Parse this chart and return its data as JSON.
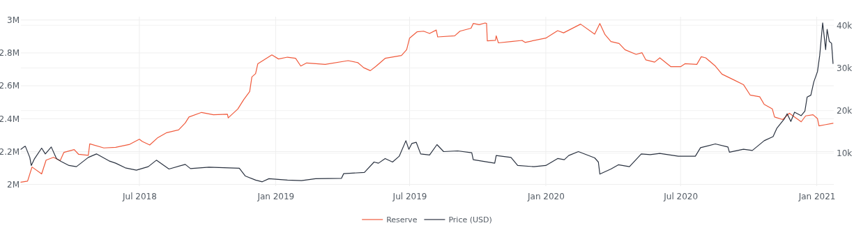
{
  "chart_data": {
    "type": "line",
    "xlim": [
      "2018-01-22",
      "2021-01-24"
    ],
    "xticks": [
      {
        "value": "2018-07-01",
        "label": "Jul 2018"
      },
      {
        "value": "2019-01-01",
        "label": "Jan 2019"
      },
      {
        "value": "2019-07-01",
        "label": "Jul 2019"
      },
      {
        "value": "2020-01-01",
        "label": "Jan 2020"
      },
      {
        "value": "2020-07-01",
        "label": "Jul 2020"
      },
      {
        "value": "2021-01-01",
        "label": "Jan 2021"
      }
    ],
    "ylim": [
      1990000,
      3020000
    ],
    "yticks": [
      {
        "value": 2000000,
        "label": "2M"
      },
      {
        "value": 2200000,
        "label": "2.2M"
      },
      {
        "value": 2400000,
        "label": "2.4M"
      },
      {
        "value": 2600000,
        "label": "2.6M"
      },
      {
        "value": 2800000,
        "label": "2.8M"
      },
      {
        "value": 3000000,
        "label": "3M"
      }
    ],
    "y2lim": [
      2300,
      42000
    ],
    "y2ticks": [
      {
        "value": 10000,
        "label": "10k"
      },
      {
        "value": 20000,
        "label": "20k"
      },
      {
        "value": 30000,
        "label": "30k"
      },
      {
        "value": 40000,
        "label": "40k"
      }
    ],
    "grid": true,
    "legend": "bottom",
    "line_style": "solid",
    "marker": "none",
    "series": [
      {
        "name": "Reserve",
        "color": "#f05a3c",
        "x": [
          "2018-01-22",
          "2018-01-31",
          "2018-02-06",
          "2018-02-19",
          "2018-02-25",
          "2018-03-07",
          "2018-03-16",
          "2018-03-21",
          "2018-04-04",
          "2018-04-10",
          "2018-04-23",
          "2018-04-25",
          "2018-05-14",
          "2018-05-30",
          "2018-06-18",
          "2018-07-01",
          "2018-07-05",
          "2018-07-15",
          "2018-07-26",
          "2018-08-07",
          "2018-08-23",
          "2018-09-01",
          "2018-09-06",
          "2018-09-23",
          "2018-10-09",
          "2018-10-28",
          "2018-10-29",
          "2018-11-11",
          "2018-11-19",
          "2018-11-27",
          "2018-11-30",
          "2018-12-05",
          "2018-12-08",
          "2018-12-27",
          "2019-01-05",
          "2019-01-17",
          "2019-01-28",
          "2019-02-04",
          "2019-02-12",
          "2019-03-09",
          "2019-04-09",
          "2019-04-22",
          "2019-04-30",
          "2019-05-09",
          "2019-05-17",
          "2019-05-29",
          "2019-06-20",
          "2019-06-27",
          "2019-07-01",
          "2019-07-11",
          "2019-07-20",
          "2019-07-28",
          "2019-08-06",
          "2019-08-08",
          "2019-08-31",
          "2019-09-07",
          "2019-09-22",
          "2019-09-25",
          "2019-10-03",
          "2019-10-11",
          "2019-10-13",
          "2019-10-14",
          "2019-10-25",
          "2019-10-26",
          "2019-10-29",
          "2019-11-15",
          "2019-11-30",
          "2019-12-04",
          "2020-01-01",
          "2020-01-17",
          "2020-01-25",
          "2020-02-17",
          "2020-03-07",
          "2020-03-14",
          "2020-03-21",
          "2020-03-29",
          "2020-04-09",
          "2020-04-17",
          "2020-05-02",
          "2020-05-10",
          "2020-05-15",
          "2020-05-27",
          "2020-06-03",
          "2020-06-18",
          "2020-07-01",
          "2020-07-07",
          "2020-07-23",
          "2020-07-29",
          "2020-08-04",
          "2020-08-17",
          "2020-08-26",
          "2020-09-11",
          "2020-09-24",
          "2020-10-03",
          "2020-10-16",
          "2020-10-22",
          "2020-11-02",
          "2020-11-05",
          "2020-11-16",
          "2020-11-25",
          "2020-12-11",
          "2020-12-17",
          "2020-12-27",
          "2021-01-02",
          "2021-01-04",
          "2021-01-12",
          "2021-01-23"
        ],
        "values": [
          2014000,
          2020000,
          2106000,
          2064000,
          2148000,
          2165000,
          2145000,
          2195000,
          2212000,
          2183000,
          2177000,
          2247000,
          2222000,
          2226000,
          2244000,
          2275000,
          2261000,
          2240000,
          2285000,
          2315000,
          2332000,
          2374000,
          2410000,
          2438000,
          2424000,
          2427000,
          2405000,
          2459000,
          2516000,
          2565000,
          2654000,
          2674000,
          2734000,
          2788000,
          2763000,
          2774000,
          2767000,
          2720000,
          2739000,
          2730000,
          2753000,
          2741000,
          2710000,
          2692000,
          2720000,
          2767000,
          2784000,
          2819000,
          2890000,
          2928000,
          2932000,
          2918000,
          2939000,
          2897000,
          2904000,
          2932000,
          2950000,
          2979000,
          2972000,
          2982000,
          2979000,
          2873000,
          2876000,
          2904000,
          2861000,
          2869000,
          2876000,
          2864000,
          2890000,
          2935000,
          2922000,
          2975000,
          2914000,
          2979000,
          2911000,
          2869000,
          2857000,
          2819000,
          2791000,
          2801000,
          2758000,
          2744000,
          2770000,
          2716000,
          2716000,
          2734000,
          2730000,
          2777000,
          2770000,
          2720000,
          2671000,
          2636000,
          2607000,
          2544000,
          2533000,
          2487000,
          2459000,
          2410000,
          2395000,
          2433000,
          2381000,
          2417000,
          2424000,
          2400000,
          2356000,
          2363000,
          2372000
        ]
      },
      {
        "name": "Price (USD)",
        "color": "#2a3240",
        "axis": "y2",
        "x": [
          "2018-01-22",
          "2018-01-26",
          "2018-01-28",
          "2018-02-03",
          "2018-02-05",
          "2018-02-09",
          "2018-02-19",
          "2018-02-24",
          "2018-03-04",
          "2018-03-11",
          "2018-03-17",
          "2018-03-28",
          "2018-04-07",
          "2018-04-23",
          "2018-05-04",
          "2018-05-21",
          "2018-05-30",
          "2018-06-12",
          "2018-06-27",
          "2018-07-13",
          "2018-07-24",
          "2018-08-10",
          "2018-09-01",
          "2018-09-08",
          "2018-10-03",
          "2018-11-13",
          "2018-11-21",
          "2018-12-05",
          "2018-12-14",
          "2018-12-23",
          "2019-01-17",
          "2019-02-05",
          "2019-02-24",
          "2019-03-31",
          "2019-04-03",
          "2019-05-01",
          "2019-05-14",
          "2019-05-20",
          "2019-05-29",
          "2019-06-08",
          "2019-06-17",
          "2019-06-26",
          "2019-06-30",
          "2019-07-04",
          "2019-07-10",
          "2019-07-16",
          "2019-07-28",
          "2019-08-07",
          "2019-08-16",
          "2019-09-04",
          "2019-09-23",
          "2019-09-25",
          "2019-10-24",
          "2019-10-26",
          "2019-11-15",
          "2019-11-24",
          "2019-12-16",
          "2020-01-01",
          "2020-01-17",
          "2020-01-26",
          "2020-02-01",
          "2020-02-14",
          "2020-03-07",
          "2020-03-12",
          "2020-03-14",
          "2020-03-29",
          "2020-04-08",
          "2020-04-23",
          "2020-05-09",
          "2020-05-21",
          "2020-06-03",
          "2020-06-28",
          "2020-07-21",
          "2020-07-28",
          "2020-08-17",
          "2020-09-03",
          "2020-09-05",
          "2020-09-24",
          "2020-10-06",
          "2020-10-22",
          "2020-11-03",
          "2020-11-08",
          "2020-11-18",
          "2020-11-22",
          "2020-11-27",
          "2020-12-02",
          "2020-12-11",
          "2020-12-16",
          "2020-12-19",
          "2020-12-24",
          "2020-12-28",
          "2021-01-02",
          "2021-01-05",
          "2021-01-09",
          "2021-01-13",
          "2021-01-15",
          "2021-01-18",
          "2021-01-21",
          "2021-01-23"
        ],
        "values": [
          10930,
          11470,
          11630,
          9020,
          7130,
          8600,
          11200,
          9840,
          11470,
          8760,
          8110,
          7130,
          6850,
          9020,
          9840,
          8210,
          7670,
          6580,
          6040,
          6850,
          8370,
          6310,
          7390,
          6410,
          6740,
          6480,
          4680,
          3700,
          3310,
          4030,
          3700,
          3590,
          4030,
          4130,
          5220,
          5500,
          7940,
          7670,
          8760,
          7940,
          9300,
          12940,
          10930,
          12280,
          12560,
          9840,
          9580,
          12020,
          10390,
          10550,
          10110,
          8480,
          7670,
          9460,
          9020,
          7130,
          6850,
          7130,
          8760,
          8480,
          9460,
          10390,
          8920,
          7940,
          5110,
          6310,
          7290,
          6850,
          9840,
          9670,
          9950,
          9300,
          9300,
          11300,
          12190,
          11470,
          10230,
          10930,
          10650,
          12940,
          13910,
          15820,
          17990,
          19250,
          17450,
          19620,
          18810,
          19900,
          23160,
          23600,
          26700,
          29150,
          32950,
          40570,
          34300,
          39030,
          36200,
          35770,
          31040
        ]
      }
    ]
  }
}
